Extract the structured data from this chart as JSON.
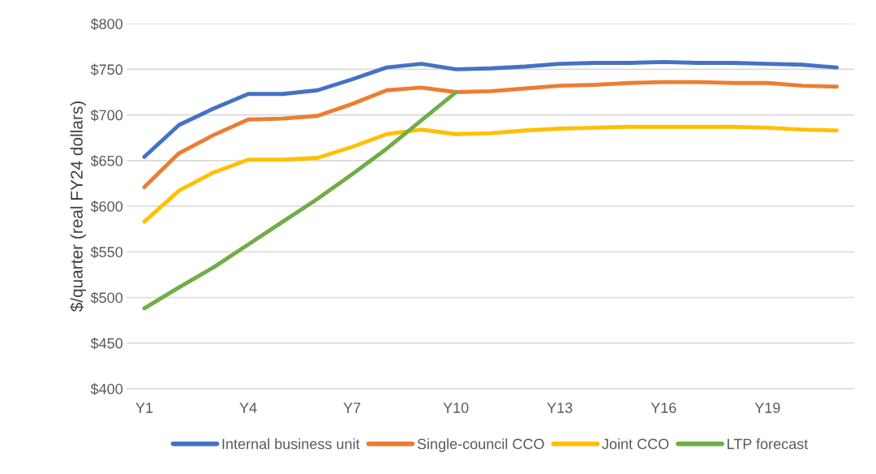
{
  "chart_data": {
    "type": "line",
    "ylabel": "$/quarter (real FY24 dollars)",
    "categories": [
      "Y1",
      null,
      null,
      "Y4",
      null,
      null,
      "Y7",
      null,
      null,
      "Y10",
      null,
      null,
      "Y13",
      null,
      null,
      "Y16",
      null,
      null,
      "Y19",
      null,
      null
    ],
    "series": [
      {
        "name": "Internal business unit",
        "color": "#4472c4",
        "values": [
          654,
          689,
          707,
          723,
          723,
          727,
          739,
          752,
          756,
          750,
          751,
          753,
          756,
          757,
          757,
          758,
          757,
          757,
          756,
          755,
          752
        ]
      },
      {
        "name": "Single-council CCO",
        "color": "#ed7d31",
        "values": [
          621,
          658,
          678,
          695,
          696,
          699,
          712,
          727,
          730,
          725,
          726,
          729,
          732,
          733,
          735,
          736,
          736,
          735,
          735,
          732,
          731
        ]
      },
      {
        "name": "Joint CCO",
        "color": "#ffc000",
        "values": [
          583,
          617,
          637,
          651,
          651,
          653,
          665,
          679,
          684,
          679,
          680,
          683,
          685,
          686,
          687,
          687,
          687,
          687,
          686,
          684,
          683
        ]
      },
      {
        "name": "LTP forecast",
        "color": "#70ad47",
        "values": [
          488,
          511,
          533,
          558,
          583,
          608,
          635,
          663,
          694,
          725,
          null,
          null,
          null,
          null,
          null,
          null,
          null,
          null,
          null,
          null,
          null
        ]
      }
    ],
    "ylim": [
      400,
      800
    ],
    "yticks": [
      {
        "value": 400,
        "label": "$400"
      },
      {
        "value": 450,
        "label": "$450"
      },
      {
        "value": 500,
        "label": "$500"
      },
      {
        "value": 550,
        "label": "$550"
      },
      {
        "value": 600,
        "label": "$600"
      },
      {
        "value": 650,
        "label": "$650"
      },
      {
        "value": 700,
        "label": "$700"
      },
      {
        "value": 750,
        "label": "$750"
      },
      {
        "value": 800,
        "label": "$800"
      }
    ],
    "grid": "y",
    "legend": "bottom",
    "marker": "none",
    "line_style": "solid"
  }
}
